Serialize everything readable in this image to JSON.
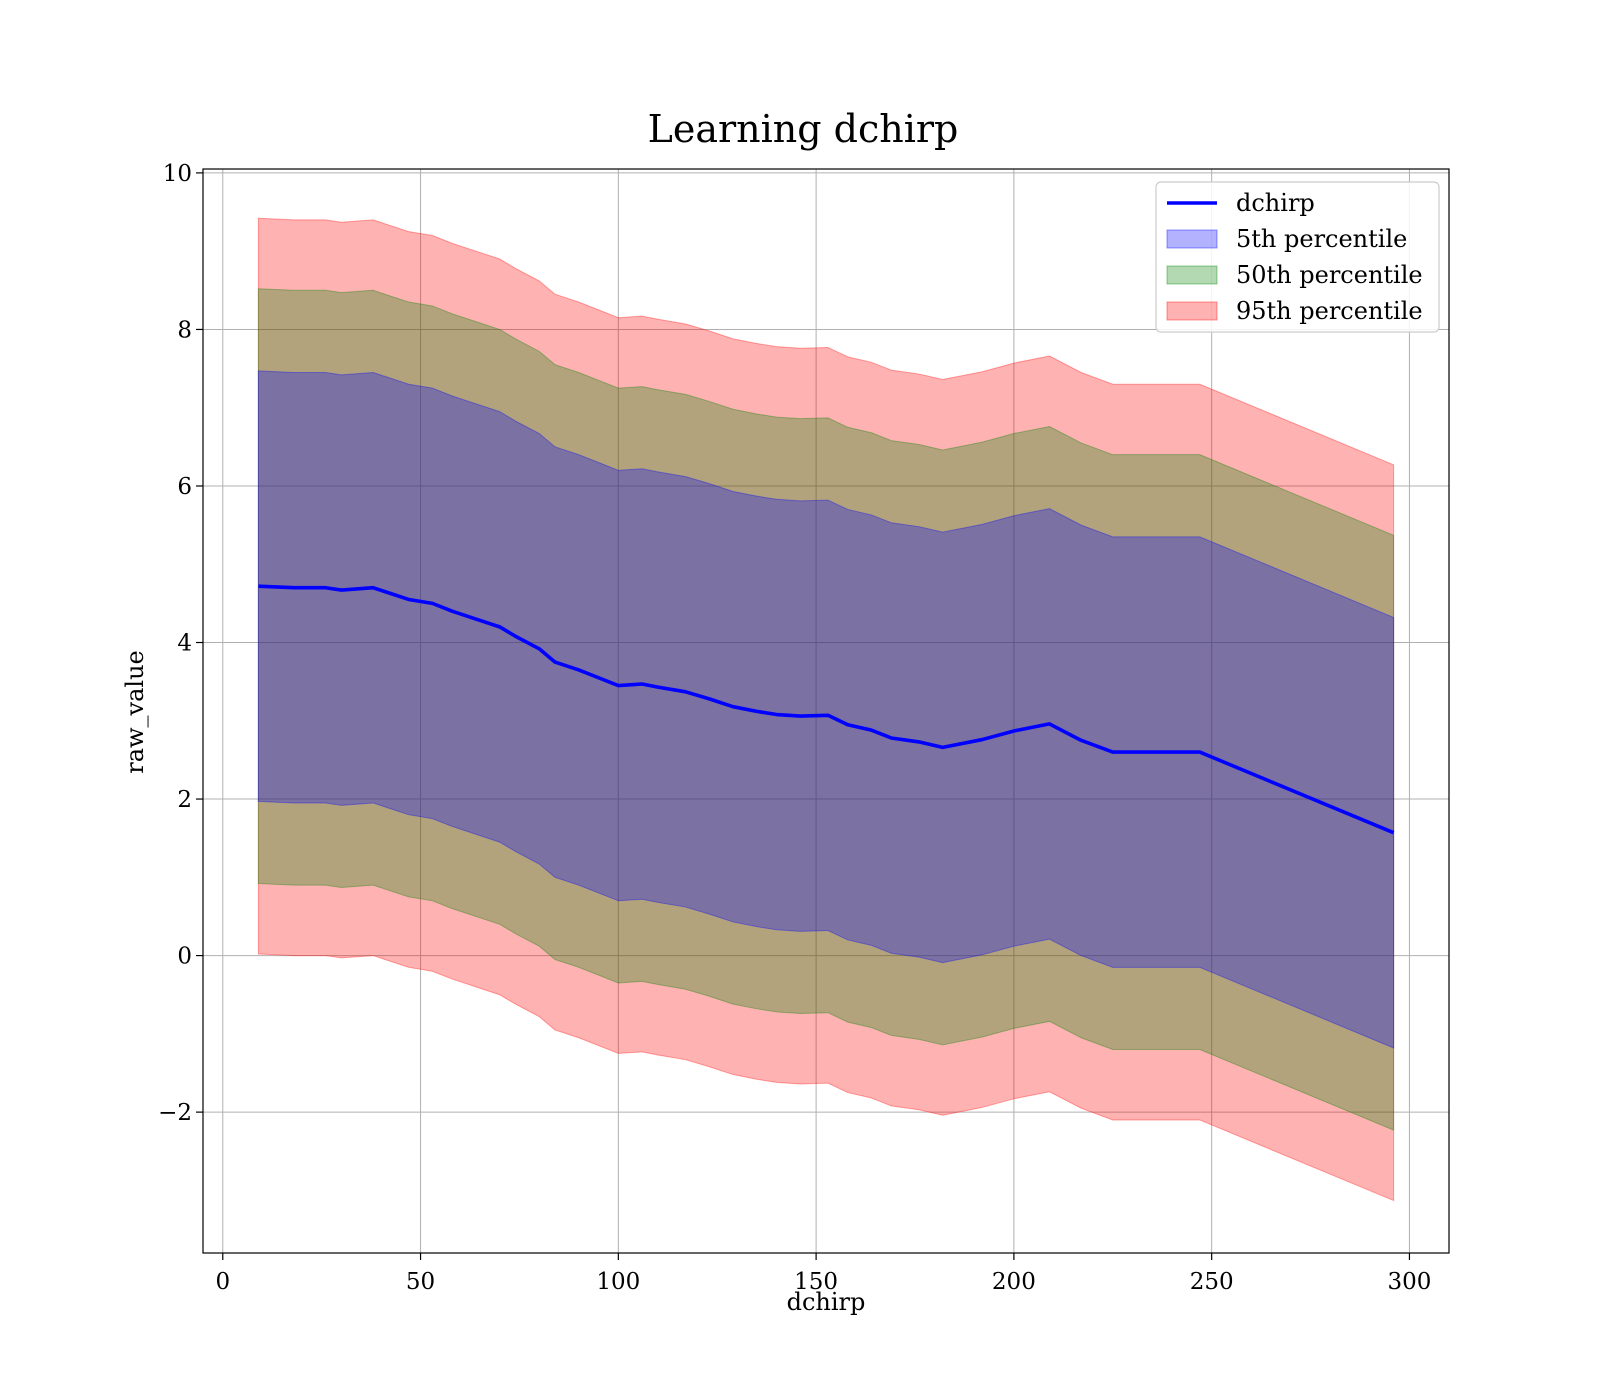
{
  "chart_data": {
    "type": "area",
    "title": "Learning dchirp",
    "xlabel": "dchirp",
    "ylabel": "raw_value",
    "xlim": [
      -5,
      310
    ],
    "ylim": [
      -3.8,
      10.05
    ],
    "xticks": [
      0,
      50,
      100,
      150,
      200,
      250,
      300
    ],
    "yticks": [
      -2,
      0,
      2,
      4,
      6,
      8,
      10
    ],
    "ytick_labels": [
      "−2",
      "0",
      "2",
      "4",
      "6",
      "8",
      "10"
    ],
    "grid": true,
    "legend_position": "top-right",
    "x": [
      9,
      18,
      26,
      30,
      38,
      41,
      47,
      53,
      58,
      64,
      70,
      74,
      80,
      84,
      90,
      95,
      100,
      106,
      110,
      117,
      123,
      129,
      135,
      140,
      146,
      153,
      158,
      164,
      169,
      176,
      182,
      192,
      200,
      209,
      217,
      225,
      247,
      296
    ],
    "series": [
      {
        "name": "dchirp",
        "kind": "line",
        "color": "#0000ff",
        "values": [
          4.72,
          4.7,
          4.7,
          4.67,
          4.7,
          4.65,
          4.55,
          4.5,
          4.4,
          4.3,
          4.2,
          4.08,
          3.92,
          3.75,
          3.65,
          3.55,
          3.45,
          3.47,
          3.43,
          3.37,
          3.28,
          3.18,
          3.12,
          3.08,
          3.06,
          3.07,
          2.95,
          2.88,
          2.78,
          2.73,
          2.66,
          2.76,
          2.87,
          2.96,
          2.75,
          2.6,
          2.6,
          1.57
        ]
      },
      {
        "name": "5th percentile",
        "kind": "band",
        "color": "#0000ff",
        "opacity": 0.3,
        "lower": [
          1.97,
          1.95,
          1.95,
          1.92,
          1.95,
          1.9,
          1.8,
          1.75,
          1.65,
          1.55,
          1.45,
          1.33,
          1.17,
          1.0,
          0.9,
          0.8,
          0.7,
          0.72,
          0.68,
          0.62,
          0.53,
          0.43,
          0.37,
          0.33,
          0.31,
          0.32,
          0.2,
          0.13,
          0.03,
          -0.02,
          -0.09,
          0.01,
          0.12,
          0.21,
          0.0,
          -0.15,
          -0.15,
          -1.18
        ],
        "upper": [
          7.47,
          7.45,
          7.45,
          7.42,
          7.45,
          7.4,
          7.3,
          7.25,
          7.15,
          7.05,
          6.95,
          6.83,
          6.67,
          6.5,
          6.4,
          6.3,
          6.2,
          6.22,
          6.18,
          6.12,
          6.03,
          5.93,
          5.87,
          5.83,
          5.81,
          5.82,
          5.7,
          5.63,
          5.53,
          5.48,
          5.41,
          5.51,
          5.62,
          5.71,
          5.5,
          5.35,
          5.35,
          4.32
        ]
      },
      {
        "name": "50th percentile",
        "kind": "band",
        "color": "#008000",
        "opacity": 0.3,
        "lower": [
          0.92,
          0.9,
          0.9,
          0.87,
          0.9,
          0.85,
          0.75,
          0.7,
          0.6,
          0.5,
          0.4,
          0.28,
          0.12,
          -0.05,
          -0.15,
          -0.25,
          -0.35,
          -0.33,
          -0.37,
          -0.43,
          -0.52,
          -0.62,
          -0.68,
          -0.72,
          -0.74,
          -0.73,
          -0.85,
          -0.92,
          -1.02,
          -1.07,
          -1.14,
          -1.04,
          -0.93,
          -0.84,
          -1.05,
          -1.2,
          -1.2,
          -2.23
        ],
        "upper": [
          8.52,
          8.5,
          8.5,
          8.47,
          8.5,
          8.45,
          8.35,
          8.3,
          8.2,
          8.1,
          8.0,
          7.88,
          7.72,
          7.55,
          7.45,
          7.35,
          7.25,
          7.27,
          7.23,
          7.17,
          7.08,
          6.98,
          6.92,
          6.88,
          6.86,
          6.87,
          6.75,
          6.68,
          6.58,
          6.53,
          6.46,
          6.56,
          6.67,
          6.76,
          6.55,
          6.4,
          6.4,
          5.37
        ]
      },
      {
        "name": "95th percentile",
        "kind": "band",
        "color": "#ff0000",
        "opacity": 0.3,
        "lower": [
          0.02,
          0.0,
          0.0,
          -0.03,
          0.0,
          -0.05,
          -0.15,
          -0.2,
          -0.3,
          -0.4,
          -0.5,
          -0.62,
          -0.78,
          -0.95,
          -1.05,
          -1.15,
          -1.25,
          -1.23,
          -1.27,
          -1.33,
          -1.42,
          -1.52,
          -1.58,
          -1.62,
          -1.64,
          -1.63,
          -1.75,
          -1.82,
          -1.92,
          -1.97,
          -2.04,
          -1.94,
          -1.83,
          -1.74,
          -1.95,
          -2.1,
          -2.1,
          -3.13
        ],
        "upper": [
          9.42,
          9.4,
          9.4,
          9.37,
          9.4,
          9.35,
          9.25,
          9.2,
          9.1,
          9.0,
          8.9,
          8.78,
          8.62,
          8.45,
          8.35,
          8.25,
          8.15,
          8.17,
          8.13,
          8.07,
          7.98,
          7.88,
          7.82,
          7.78,
          7.76,
          7.77,
          7.65,
          7.58,
          7.48,
          7.43,
          7.36,
          7.46,
          7.57,
          7.66,
          7.45,
          7.3,
          7.3,
          6.27
        ]
      }
    ]
  }
}
